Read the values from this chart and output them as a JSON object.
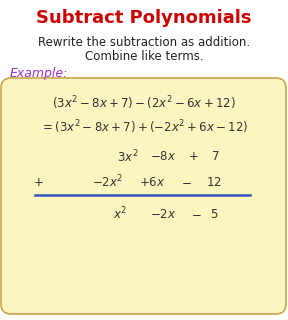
{
  "title": "Subtract Polynomials",
  "title_color": "#cc0000",
  "title_fontsize": 13,
  "subtitle_lines": [
    "Rewrite the subtraction as addition.",
    "Combine like terms."
  ],
  "subtitle_color": "#222222",
  "subtitle_fontsize": 8.5,
  "example_label": "Example:",
  "example_color": "#9933cc",
  "example_fontsize": 9,
  "box_facecolor": "#fdf5c0",
  "box_edgecolor": "#c8a84b",
  "math_color": "#333333",
  "math_fontsize": 8.5,
  "line_color": "#3355bb",
  "background_color": "#ffffff",
  "fig_width": 2.88,
  "fig_height": 3.2,
  "dpi": 100
}
